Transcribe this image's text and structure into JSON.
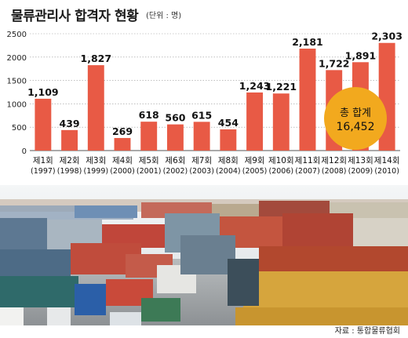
{
  "header": {
    "title": "물류관리사 합격자 현황",
    "unit": "(단위 : 명)"
  },
  "chart_data": {
    "type": "bar",
    "title": "물류관리사 합격자 현황",
    "unit": "(단위 : 명)",
    "categories": [
      "제1회",
      "제2회",
      "제3회",
      "제4회",
      "제5회",
      "제6회",
      "제7회",
      "제8회",
      "제9회",
      "제10회",
      "제11회",
      "제12회",
      "제13회",
      "제14회"
    ],
    "years": [
      "(1997)",
      "(1998)",
      "(1999)",
      "(2000)",
      "(2001)",
      "(2002)",
      "(2003)",
      "(2004)",
      "(2005)",
      "(2006)",
      "(2007)",
      "(2008)",
      "(2009)",
      "(2010)"
    ],
    "values": [
      1109,
      439,
      1827,
      269,
      618,
      560,
      615,
      454,
      1243,
      1221,
      2181,
      1722,
      1891,
      2303
    ],
    "value_labels": [
      "1,109",
      "439",
      "1,827",
      "269",
      "618",
      "560",
      "615",
      "454",
      "1,243",
      "1,221",
      "2,181",
      "1,722",
      "1,891",
      "2,303"
    ],
    "yticks": [
      "0",
      "500",
      "1000",
      "1500",
      "2000",
      "2500"
    ],
    "ylim": [
      0,
      2500
    ],
    "grid": true,
    "bar_color": "#e85a45",
    "annotation": {
      "label": "총 합계",
      "value": "16,452",
      "color": "#f2a91e"
    }
  },
  "footer": {
    "source": "자료 : 통합물류협회"
  }
}
